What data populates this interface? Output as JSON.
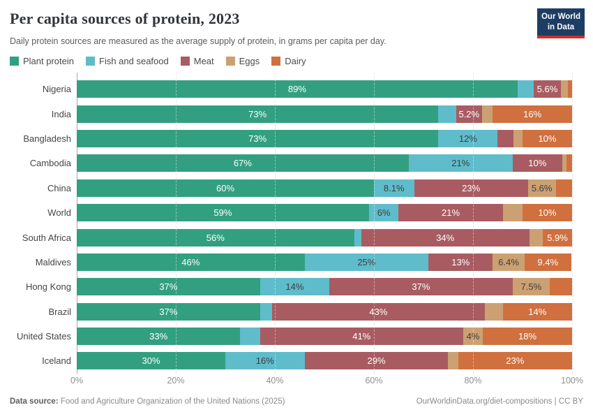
{
  "header": {
    "title": "Per capita sources of protein, 2023",
    "subtitle": "Daily protein sources are measured as the average supply of protein, in grams per capita per day.",
    "logo": {
      "line1": "Our World",
      "line2": "in Data",
      "bg_color": "#1d3d63",
      "strip_color": "#cf2e27"
    }
  },
  "chart_data": {
    "type": "bar",
    "stacked": true,
    "orientation": "horizontal",
    "unit": "%",
    "xlim": [
      0,
      100
    ],
    "x_ticks": [
      "0%",
      "20%",
      "40%",
      "60%",
      "80%",
      "100%"
    ],
    "grid": "dashed vertical lines at each 20%",
    "legend_position": "top",
    "series": [
      {
        "name": "Plant protein",
        "color": "#32a080",
        "label_color": "#ffffff"
      },
      {
        "name": "Fish and seafood",
        "color": "#5fbccb",
        "label_color": "#3d3d3d"
      },
      {
        "name": "Meat",
        "color": "#a85c61",
        "label_color": "#ffffff"
      },
      {
        "name": "Eggs",
        "color": "#cba173",
        "label_color": "#3d3d3d"
      },
      {
        "name": "Dairy",
        "color": "#d0703f",
        "label_color": "#ffffff"
      }
    ],
    "categories": [
      "Nigeria",
      "India",
      "Bangladesh",
      "Cambodia",
      "China",
      "World",
      "South Africa",
      "Maldives",
      "Hong Kong",
      "Brazil",
      "United States",
      "Iceland"
    ],
    "rows": [
      {
        "country": "Nigeria",
        "segments": [
          {
            "value": 89,
            "label": "89%"
          },
          {
            "value": 3.2,
            "label": ""
          },
          {
            "value": 5.6,
            "label": "5.6%"
          },
          {
            "value": 1.3,
            "label": ""
          },
          {
            "value": 0.9,
            "label": ""
          }
        ]
      },
      {
        "country": "India",
        "segments": [
          {
            "value": 73,
            "label": "73%"
          },
          {
            "value": 3.6,
            "label": ""
          },
          {
            "value": 5.2,
            "label": "5.2%"
          },
          {
            "value": 2.2,
            "label": ""
          },
          {
            "value": 16,
            "label": "16%"
          }
        ]
      },
      {
        "country": "Bangladesh",
        "segments": [
          {
            "value": 73,
            "label": "73%"
          },
          {
            "value": 12,
            "label": "12%"
          },
          {
            "value": 3.2,
            "label": ""
          },
          {
            "value": 1.8,
            "label": ""
          },
          {
            "value": 10,
            "label": "10%"
          }
        ]
      },
      {
        "country": "Cambodia",
        "segments": [
          {
            "value": 67,
            "label": "67%"
          },
          {
            "value": 21,
            "label": "21%"
          },
          {
            "value": 10,
            "label": "10%"
          },
          {
            "value": 0.9,
            "label": ""
          },
          {
            "value": 1.1,
            "label": ""
          }
        ]
      },
      {
        "country": "China",
        "segments": [
          {
            "value": 60,
            "label": "60%"
          },
          {
            "value": 8.1,
            "label": "8.1%"
          },
          {
            "value": 23,
            "label": "23%"
          },
          {
            "value": 5.6,
            "label": "5.6%"
          },
          {
            "value": 3.3,
            "label": ""
          }
        ]
      },
      {
        "country": "World",
        "segments": [
          {
            "value": 59,
            "label": "59%"
          },
          {
            "value": 6,
            "label": "6%"
          },
          {
            "value": 21,
            "label": "21%"
          },
          {
            "value": 4,
            "label": ""
          },
          {
            "value": 10,
            "label": "10%"
          }
        ]
      },
      {
        "country": "South Africa",
        "segments": [
          {
            "value": 56,
            "label": "56%"
          },
          {
            "value": 1.4,
            "label": ""
          },
          {
            "value": 34,
            "label": "34%"
          },
          {
            "value": 2.7,
            "label": ""
          },
          {
            "value": 5.9,
            "label": "5.9%"
          }
        ]
      },
      {
        "country": "Maldives",
        "segments": [
          {
            "value": 46,
            "label": "46%"
          },
          {
            "value": 25,
            "label": "25%"
          },
          {
            "value": 13,
            "label": "13%"
          },
          {
            "value": 6.4,
            "label": "6.4%"
          },
          {
            "value": 9.4,
            "label": "9.4%"
          }
        ]
      },
      {
        "country": "Hong Kong",
        "segments": [
          {
            "value": 37,
            "label": "37%"
          },
          {
            "value": 14,
            "label": "14%"
          },
          {
            "value": 37,
            "label": "37%"
          },
          {
            "value": 7.5,
            "label": "7.5%"
          },
          {
            "value": 4.5,
            "label": ""
          }
        ]
      },
      {
        "country": "Brazil",
        "segments": [
          {
            "value": 37,
            "label": "37%"
          },
          {
            "value": 2.4,
            "label": ""
          },
          {
            "value": 43,
            "label": "43%"
          },
          {
            "value": 3.6,
            "label": ""
          },
          {
            "value": 14,
            "label": "14%"
          }
        ]
      },
      {
        "country": "United States",
        "segments": [
          {
            "value": 33,
            "label": "33%"
          },
          {
            "value": 4,
            "label": ""
          },
          {
            "value": 41,
            "label": "41%"
          },
          {
            "value": 4,
            "label": "4%"
          },
          {
            "value": 18,
            "label": "18%"
          }
        ]
      },
      {
        "country": "Iceland",
        "segments": [
          {
            "value": 30,
            "label": "30%"
          },
          {
            "value": 16,
            "label": "16%"
          },
          {
            "value": 29,
            "label": "29%"
          },
          {
            "value": 2,
            "label": ""
          },
          {
            "value": 23,
            "label": "23%"
          }
        ]
      }
    ],
    "title": "Per capita sources of protein, 2023"
  },
  "footer": {
    "source_label": "Data source:",
    "source_text": "Food and Agriculture Organization of the United Nations (2025)",
    "link": "OurWorldinData.org/diet-compositions",
    "separator": "|",
    "license": "CC BY"
  }
}
